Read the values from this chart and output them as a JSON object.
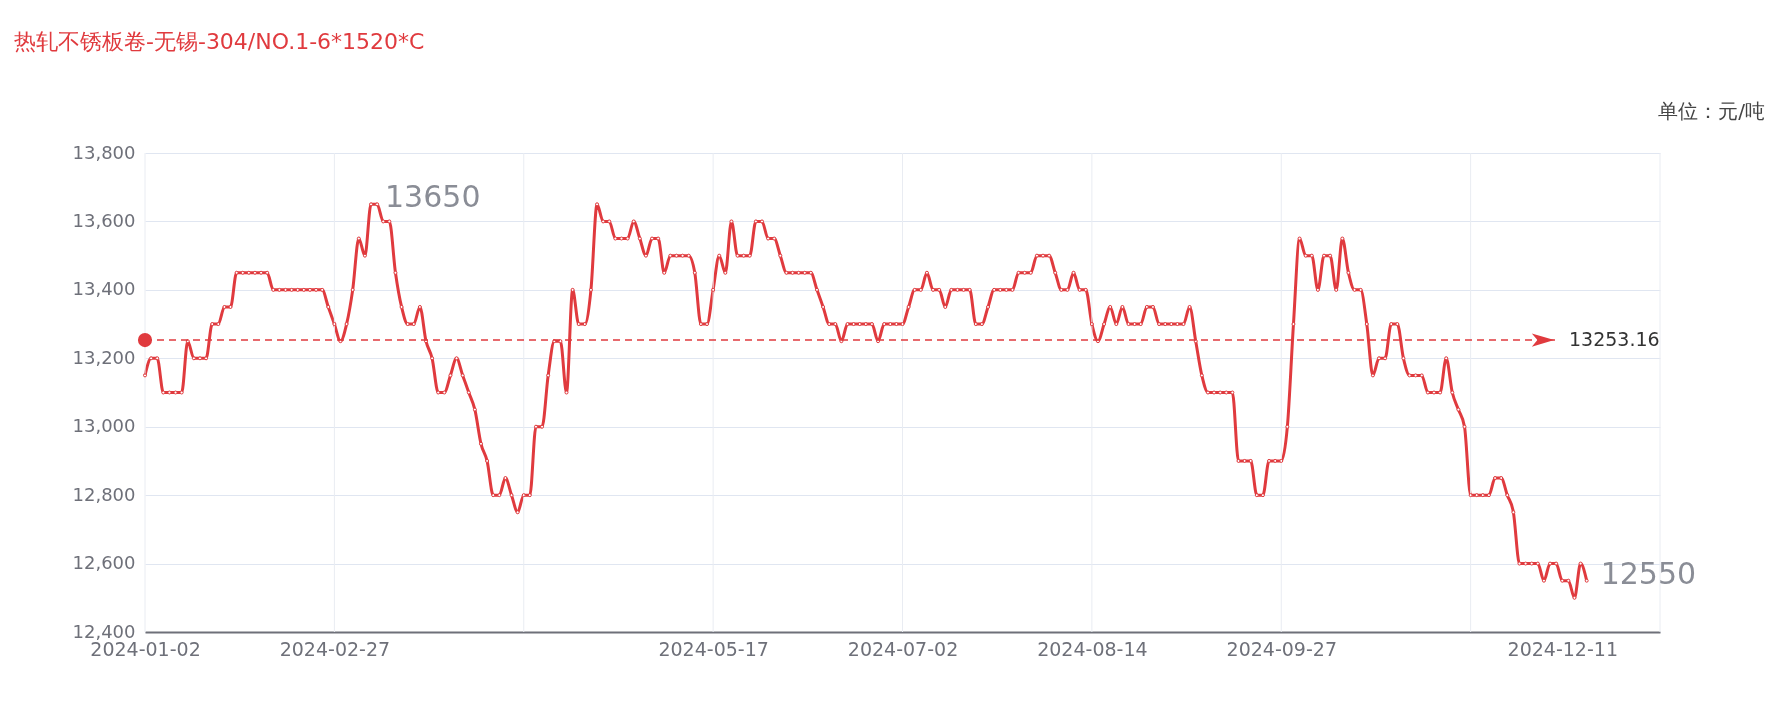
{
  "chart_data": {
    "type": "line",
    "title": "热轧不锈板卷-无锡-304/NO.1-6*1520*C",
    "annotations": [
      "单位：元/吨",
      "13650",
      "12550"
    ],
    "categories": [
      "2024-01-02",
      null,
      null,
      null,
      null,
      null,
      null,
      null,
      null,
      null,
      null,
      null,
      null,
      null,
      null,
      null,
      null,
      null,
      null,
      null,
      null,
      null,
      null,
      null,
      null,
      null,
      null,
      null,
      null,
      null,
      null,
      "2024-02-27",
      null,
      null,
      null,
      null,
      null,
      null,
      null,
      null,
      null,
      null,
      null,
      null,
      null,
      null,
      null,
      null,
      null,
      null,
      null,
      null,
      null,
      null,
      null,
      null,
      null,
      null,
      null,
      null,
      null,
      null,
      null,
      null,
      null,
      null,
      null,
      null,
      null,
      null,
      null,
      null,
      null,
      null,
      null,
      null,
      null,
      null,
      null,
      null,
      null,
      null,
      null,
      null,
      null,
      null,
      null,
      null,
      null,
      null,
      null,
      null,
      null,
      "2024-05-17",
      null,
      null,
      null,
      null,
      null,
      null,
      null,
      null,
      null,
      null,
      null,
      null,
      null,
      null,
      null,
      null,
      null,
      null,
      null,
      null,
      null,
      null,
      null,
      null,
      null,
      null,
      null,
      null,
      null,
      null,
      "2024-07-02",
      null,
      null,
      null,
      null,
      null,
      null,
      null,
      null,
      null,
      null,
      null,
      null,
      null,
      null,
      null,
      null,
      null,
      null,
      null,
      null,
      null,
      null,
      null,
      null,
      null,
      null,
      null,
      null,
      null,
      null,
      "2024-08-14",
      null,
      null,
      null,
      null,
      null,
      null,
      null,
      null,
      null,
      null,
      null,
      null,
      null,
      null,
      null,
      null,
      null,
      null,
      null,
      null,
      null,
      null,
      null,
      null,
      null,
      null,
      null,
      null,
      null,
      null,
      "2024-09-27",
      null,
      null,
      null,
      null,
      null,
      null,
      null,
      null,
      null,
      null,
      null,
      null,
      null,
      null,
      null,
      null,
      null,
      null,
      null,
      null,
      null,
      null,
      null,
      null,
      null,
      null,
      null,
      null,
      null,
      null,
      null,
      null,
      null,
      null,
      null,
      null,
      null,
      null,
      null,
      null,
      null,
      null,
      null,
      null,
      null,
      "2024-12-11",
      null,
      null,
      null,
      null,
      null,
      null,
      null,
      null,
      null,
      null,
      null,
      null,
      null,
      null,
      null,
      null
    ],
    "series": [
      {
        "color": "#e03a3e",
        "values": [
          13150,
          13200,
          13200,
          13100,
          13100,
          13100,
          13100,
          13250,
          13200,
          13200,
          13200,
          13300,
          13300,
          13350,
          13350,
          13450,
          13450,
          13450,
          13450,
          13450,
          13450,
          13400,
          13400,
          13400,
          13400,
          13400,
          13400,
          13400,
          13400,
          13400,
          13350,
          13300,
          13250,
          13300,
          13400,
          13550,
          13500,
          13650,
          13650,
          13600,
          13600,
          13450,
          13350,
          13300,
          13300,
          13350,
          13250,
          13200,
          13100,
          13100,
          13150,
          13200,
          13150,
          13100,
          13050,
          12950,
          12900,
          12800,
          12800,
          12850,
          12800,
          12750,
          12800,
          12800,
          13000,
          13000,
          13150,
          13250,
          13250,
          13100,
          13400,
          13300,
          13300,
          13400,
          13650,
          13600,
          13600,
          13550,
          13550,
          13550,
          13600,
          13550,
          13500,
          13550,
          13550,
          13450,
          13500,
          13500,
          13500,
          13500,
          13450,
          13300,
          13300,
          13400,
          13500,
          13450,
          13600,
          13500,
          13500,
          13500,
          13600,
          13600,
          13550,
          13550,
          13500,
          13450,
          13450,
          13450,
          13450,
          13450,
          13400,
          13350,
          13300,
          13300,
          13250,
          13300,
          13300,
          13300,
          13300,
          13300,
          13250,
          13300,
          13300,
          13300,
          13300,
          13350,
          13400,
          13400,
          13450,
          13400,
          13400,
          13350,
          13400,
          13400,
          13400,
          13400,
          13300,
          13300,
          13350,
          13400,
          13400,
          13400,
          13400,
          13450,
          13450,
          13450,
          13500,
          13500,
          13500,
          13450,
          13400,
          13400,
          13450,
          13400,
          13400,
          13300,
          13250,
          13300,
          13350,
          13300,
          13350,
          13300,
          13300,
          13300,
          13350,
          13350,
          13300,
          13300,
          13300,
          13300,
          13300,
          13350,
          13250,
          13150,
          13100,
          13100,
          13100,
          13100,
          13100,
          12900,
          12900,
          12900,
          12800,
          12800,
          12900,
          12900,
          12900,
          13000,
          13300,
          13550,
          13500,
          13500,
          13400,
          13500,
          13500,
          13400,
          13550,
          13450,
          13400,
          13400,
          13300,
          13150,
          13200,
          13200,
          13300,
          13300,
          13200,
          13150,
          13150,
          13150,
          13100,
          13100,
          13100,
          13200,
          13100,
          13050,
          13000,
          12800,
          12800,
          12800,
          12800,
          12850,
          12850,
          12800,
          12750,
          12600,
          12600,
          12600,
          12600,
          12550,
          12600,
          12600,
          12550,
          12550,
          12500,
          12600,
          12550,
          null,
          null,
          null,
          null,
          null,
          null,
          null,
          null,
          null,
          null,
          null,
          null
        ]
      }
    ],
    "ylim": [
      12400,
      13800
    ],
    "yticks": [
      {
        "value": 12400,
        "label": "12,400"
      },
      {
        "value": 12600,
        "label": "12,600"
      },
      {
        "value": 12800,
        "label": "12,800"
      },
      {
        "value": 13000,
        "label": "13,000"
      },
      {
        "value": 13200,
        "label": "13,200"
      },
      {
        "value": 13400,
        "label": "13,400"
      },
      {
        "value": 13600,
        "label": "13,600"
      },
      {
        "value": 13800,
        "label": "13,800"
      }
    ],
    "ref_lines": [
      {
        "axis": "y",
        "value": 13253.16,
        "label": "13253.16",
        "color": "#e03a3e",
        "line_style": "dashed"
      }
    ],
    "grid": true,
    "marker": "circle",
    "line_style": "solid"
  }
}
